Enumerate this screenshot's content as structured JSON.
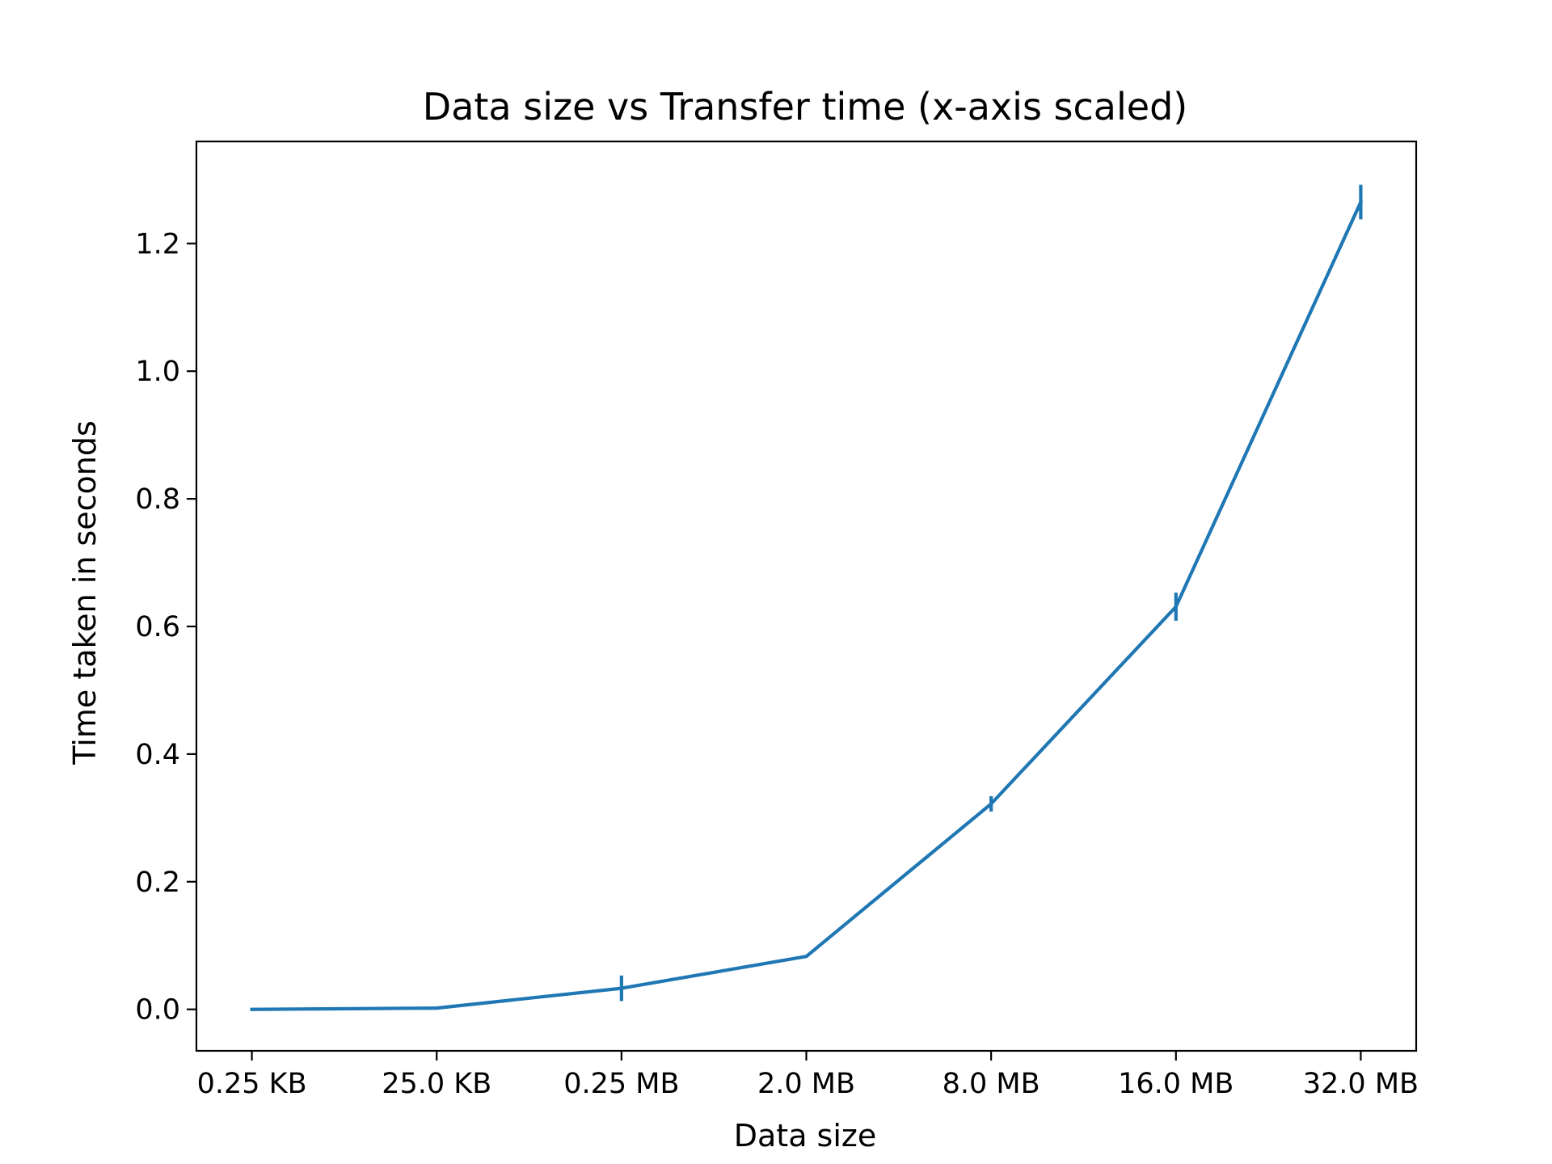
{
  "chart_data": {
    "type": "line",
    "title": "Data size vs Transfer time (x-axis scaled)",
    "xlabel": "Data size",
    "ylabel": "Time taken in seconds",
    "categories": [
      "0.25 KB",
      "25.0 KB",
      "0.25 MB",
      "2.0 MB",
      "8.0 MB",
      "16.0 MB",
      "32.0 MB"
    ],
    "series": [
      {
        "values": [
          0.0,
          0.002,
          0.033,
          0.083,
          0.322,
          0.631,
          1.265
        ],
        "errors": [
          0.0,
          0.0,
          0.02,
          0.002,
          0.012,
          0.022,
          0.027
        ]
      }
    ],
    "yticks": [
      0.0,
      0.2,
      0.4,
      0.6,
      0.8,
      1.0,
      1.2
    ],
    "ytick_labels": [
      "0.0",
      "0.2",
      "0.4",
      "0.6",
      "0.8",
      "1.0",
      "1.2"
    ],
    "ylim": [
      -0.065,
      1.36
    ],
    "grid": false,
    "legend": "none",
    "colors": {
      "line": "#1f77b4",
      "axes": "#000000"
    }
  }
}
